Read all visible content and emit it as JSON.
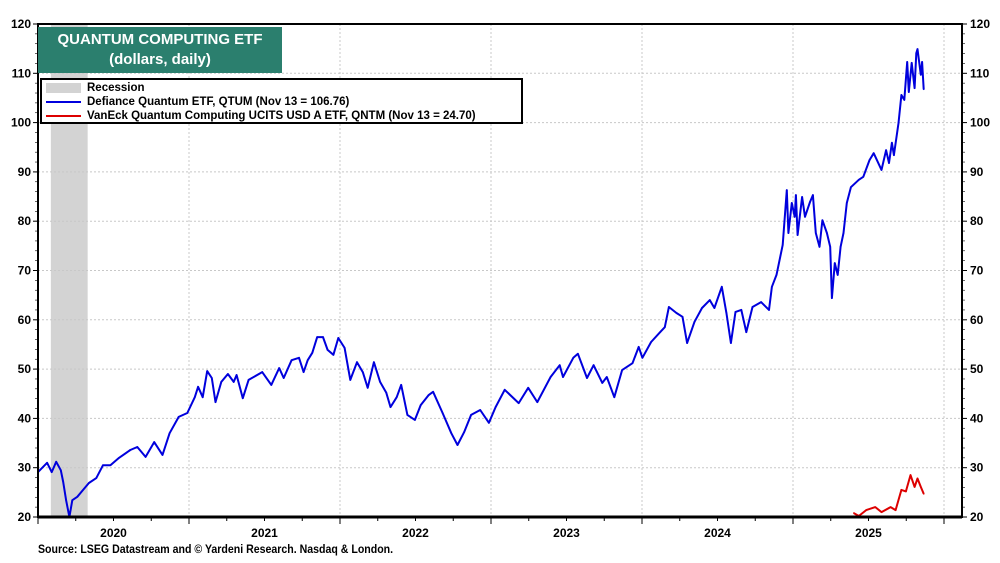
{
  "chart_data": {
    "type": "line",
    "title": "QUANTUM COMPUTING ETF",
    "subtitle": "(dollars, daily)",
    "xlabel": "",
    "ylabel": "",
    "xlim": [
      "2020-01-01",
      "2026-02-15"
    ],
    "ylim": [
      20,
      120
    ],
    "yticks": [
      20,
      30,
      40,
      50,
      60,
      70,
      80,
      90,
      100,
      110,
      120
    ],
    "xtick_labels": [
      "2020",
      "2021",
      "2022",
      "2023",
      "2024",
      "2025"
    ],
    "grid": true,
    "y_axis_sides": "both",
    "legend_placement": "top-left",
    "recession": {
      "label": "Recession",
      "start": "2020-02-01",
      "end": "2020-04-30",
      "color": "#d3d3d3"
    },
    "series": [
      {
        "name": "Defiance Quantum ETF, QTUM (Nov 13 = 106.76)",
        "color": "#0000dd",
        "points": [
          [
            "2020-01-01",
            29.1
          ],
          [
            "2020-01-23",
            31.0
          ],
          [
            "2020-02-03",
            29.1
          ],
          [
            "2020-02-14",
            31.2
          ],
          [
            "2020-02-25",
            29.5
          ],
          [
            "2020-03-02",
            27.1
          ],
          [
            "2020-03-09",
            23.4
          ],
          [
            "2020-03-17",
            20.0
          ],
          [
            "2020-03-24",
            23.4
          ],
          [
            "2020-04-05",
            24.1
          ],
          [
            "2020-04-19",
            25.5
          ],
          [
            "2020-05-03",
            26.9
          ],
          [
            "2020-05-21",
            27.9
          ],
          [
            "2020-06-06",
            30.5
          ],
          [
            "2020-06-24",
            30.5
          ],
          [
            "2020-07-15",
            32.0
          ],
          [
            "2020-08-11",
            33.6
          ],
          [
            "2020-08-28",
            34.2
          ],
          [
            "2020-09-17",
            32.2
          ],
          [
            "2020-10-08",
            35.2
          ],
          [
            "2020-10-28",
            32.6
          ],
          [
            "2020-11-14",
            37.0
          ],
          [
            "2020-12-06",
            40.3
          ],
          [
            "2020-12-27",
            41.1
          ],
          [
            "2021-01-15",
            44.3
          ],
          [
            "2021-01-23",
            46.4
          ],
          [
            "2021-02-03",
            44.3
          ],
          [
            "2021-02-14",
            49.6
          ],
          [
            "2021-02-25",
            48.2
          ],
          [
            "2021-03-06",
            43.3
          ],
          [
            "2021-03-20",
            47.4
          ],
          [
            "2021-04-05",
            49.0
          ],
          [
            "2021-04-19",
            47.4
          ],
          [
            "2021-04-26",
            48.8
          ],
          [
            "2021-05-11",
            44.1
          ],
          [
            "2021-05-25",
            47.8
          ],
          [
            "2021-06-27",
            49.4
          ],
          [
            "2021-07-19",
            46.8
          ],
          [
            "2021-08-07",
            50.2
          ],
          [
            "2021-08-18",
            48.2
          ],
          [
            "2021-09-06",
            51.8
          ],
          [
            "2021-09-24",
            52.3
          ],
          [
            "2021-10-05",
            49.4
          ],
          [
            "2021-10-15",
            51.8
          ],
          [
            "2021-10-26",
            53.3
          ],
          [
            "2021-11-07",
            56.5
          ],
          [
            "2021-11-21",
            56.5
          ],
          [
            "2021-12-02",
            53.9
          ],
          [
            "2021-12-16",
            52.9
          ],
          [
            "2021-12-28",
            56.3
          ],
          [
            "2022-01-12",
            54.3
          ],
          [
            "2022-01-26",
            47.8
          ],
          [
            "2022-02-11",
            51.4
          ],
          [
            "2022-02-25",
            49.4
          ],
          [
            "2022-03-09",
            46.2
          ],
          [
            "2022-03-24",
            51.4
          ],
          [
            "2022-04-08",
            47.4
          ],
          [
            "2022-04-23",
            45.2
          ],
          [
            "2022-05-03",
            42.3
          ],
          [
            "2022-05-18",
            44.3
          ],
          [
            "2022-05-29",
            46.8
          ],
          [
            "2022-06-13",
            40.7
          ],
          [
            "2022-07-01",
            39.7
          ],
          [
            "2022-07-15",
            42.7
          ],
          [
            "2022-08-03",
            44.7
          ],
          [
            "2022-08-14",
            45.4
          ],
          [
            "2022-09-06",
            41.1
          ],
          [
            "2022-09-27",
            37.0
          ],
          [
            "2022-10-12",
            34.6
          ],
          [
            "2022-10-28",
            37.2
          ],
          [
            "2022-11-14",
            40.7
          ],
          [
            "2022-12-06",
            41.7
          ],
          [
            "2022-12-27",
            39.1
          ],
          [
            "2023-01-12",
            42.3
          ],
          [
            "2023-02-03",
            45.8
          ],
          [
            "2023-03-09",
            43.1
          ],
          [
            "2023-04-01",
            46.2
          ],
          [
            "2023-04-23",
            43.3
          ],
          [
            "2023-05-25",
            48.4
          ],
          [
            "2023-06-16",
            50.8
          ],
          [
            "2023-06-24",
            48.4
          ],
          [
            "2023-07-19",
            52.3
          ],
          [
            "2023-07-30",
            53.1
          ],
          [
            "2023-08-21",
            48.2
          ],
          [
            "2023-09-06",
            50.8
          ],
          [
            "2023-09-27",
            47.2
          ],
          [
            "2023-10-08",
            48.4
          ],
          [
            "2023-10-26",
            44.3
          ],
          [
            "2023-11-14",
            49.8
          ],
          [
            "2023-12-09",
            51.2
          ],
          [
            "2023-12-24",
            54.5
          ],
          [
            "2024-01-02",
            52.3
          ],
          [
            "2024-01-23",
            55.5
          ],
          [
            "2024-02-14",
            57.5
          ],
          [
            "2024-02-25",
            58.5
          ],
          [
            "2024-03-06",
            62.6
          ],
          [
            "2024-03-24",
            61.4
          ],
          [
            "2024-04-08",
            60.6
          ],
          [
            "2024-04-19",
            55.3
          ],
          [
            "2024-05-07",
            59.6
          ],
          [
            "2024-05-25",
            62.4
          ],
          [
            "2024-06-13",
            64.0
          ],
          [
            "2024-06-24",
            62.4
          ],
          [
            "2024-07-12",
            66.7
          ],
          [
            "2024-07-23",
            61.4
          ],
          [
            "2024-08-03",
            55.3
          ],
          [
            "2024-08-14",
            61.6
          ],
          [
            "2024-08-28",
            62.0
          ],
          [
            "2024-09-09",
            57.5
          ],
          [
            "2024-09-24",
            62.6
          ],
          [
            "2024-10-15",
            63.6
          ],
          [
            "2024-11-03",
            62.0
          ],
          [
            "2024-11-10",
            66.7
          ],
          [
            "2024-11-21",
            69.1
          ],
          [
            "2024-12-06",
            75.2
          ],
          [
            "2024-12-16",
            86.3
          ],
          [
            "2024-12-20",
            77.6
          ],
          [
            "2024-12-28",
            83.7
          ],
          [
            "2025-01-05",
            80.9
          ],
          [
            "2025-01-08",
            85.3
          ],
          [
            "2025-01-12",
            77.2
          ],
          [
            "2025-01-23",
            84.9
          ],
          [
            "2025-01-30",
            80.9
          ],
          [
            "2025-02-11",
            83.9
          ],
          [
            "2025-02-18",
            85.3
          ],
          [
            "2025-02-25",
            77.6
          ],
          [
            "2025-03-06",
            74.8
          ],
          [
            "2025-03-13",
            80.2
          ],
          [
            "2025-03-24",
            77.6
          ],
          [
            "2025-04-01",
            74.8
          ],
          [
            "2025-04-05",
            64.4
          ],
          [
            "2025-04-12",
            71.5
          ],
          [
            "2025-04-19",
            69.1
          ],
          [
            "2025-04-26",
            74.8
          ],
          [
            "2025-05-03",
            77.6
          ],
          [
            "2025-05-11",
            83.7
          ],
          [
            "2025-05-21",
            86.9
          ],
          [
            "2025-06-09",
            88.4
          ],
          [
            "2025-06-20",
            89.0
          ],
          [
            "2025-07-05",
            92.4
          ],
          [
            "2025-07-15",
            93.8
          ],
          [
            "2025-08-03",
            90.4
          ],
          [
            "2025-08-14",
            94.4
          ],
          [
            "2025-08-21",
            91.8
          ],
          [
            "2025-08-28",
            95.9
          ],
          [
            "2025-09-02",
            93.4
          ],
          [
            "2025-09-13",
            99.9
          ],
          [
            "2025-09-20",
            105.6
          ],
          [
            "2025-09-27",
            104.6
          ],
          [
            "2025-10-04",
            112.3
          ],
          [
            "2025-10-08",
            106.2
          ],
          [
            "2025-10-15",
            112.1
          ],
          [
            "2025-10-22",
            107.0
          ],
          [
            "2025-10-26",
            114.1
          ],
          [
            "2025-10-29",
            114.9
          ],
          [
            "2025-11-06",
            109.7
          ],
          [
            "2025-11-09",
            112.3
          ],
          [
            "2025-11-13",
            106.76
          ]
        ]
      },
      {
        "name": "VanEck Quantum Computing UCITS USD A ETF, QNTM (Nov 13 = 24.70)",
        "color": "#dd0000",
        "points": [
          [
            "2025-05-28",
            20.8
          ],
          [
            "2025-06-09",
            20.2
          ],
          [
            "2025-06-27",
            21.4
          ],
          [
            "2025-07-19",
            22.0
          ],
          [
            "2025-08-03",
            21.0
          ],
          [
            "2025-08-25",
            22.0
          ],
          [
            "2025-09-06",
            21.4
          ],
          [
            "2025-09-20",
            25.5
          ],
          [
            "2025-10-01",
            25.2
          ],
          [
            "2025-10-12",
            28.5
          ],
          [
            "2025-10-22",
            26.1
          ],
          [
            "2025-10-29",
            27.8
          ],
          [
            "2025-11-06",
            26.1
          ],
          [
            "2025-11-13",
            24.7
          ]
        ]
      }
    ],
    "source": "Source: LSEG Datastream and © Yardeni Research. Nasdaq & London."
  },
  "colors": {
    "title_bg": "#2b7f6e",
    "title_text": "#ffffff"
  }
}
